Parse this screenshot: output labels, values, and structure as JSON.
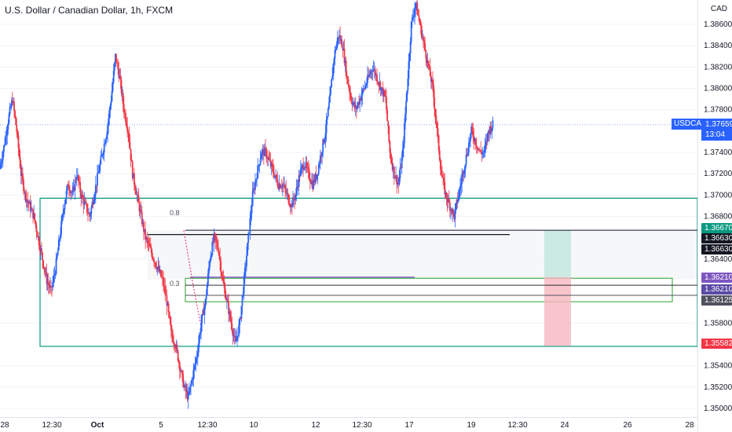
{
  "header": {
    "title": "U.S. Dollar / Canadian Dollar, 1h, FXCM",
    "currency": "CAD"
  },
  "symbol_tag": "USDCAD",
  "last_price": {
    "value": "1.37659",
    "countdown": "13:04"
  },
  "y_axis_ticks": [
    "1.38600",
    "1.38400",
    "1.38200",
    "1.38000",
    "1.37800",
    "1.37400",
    "1.37200",
    "1.37000",
    "1.36800",
    "1.36400",
    "1.35800",
    "1.35400",
    "1.35200",
    "1.35000"
  ],
  "x_axis_ticks": [
    "28",
    "12:30",
    "Oct",
    "5",
    "12:30",
    "10",
    "12",
    "12:30",
    "17",
    "19",
    "12:30",
    "24",
    "26",
    "28"
  ],
  "price_tags": [
    {
      "label": "1.36670",
      "color": "#089981"
    },
    {
      "label": "1.36630",
      "color": "#131722"
    },
    {
      "label": "1.36630",
      "color": "#131722"
    },
    {
      "label": "1.36210",
      "color": "#7e57c2"
    },
    {
      "label": "1.36210",
      "color": "#5b4aa5"
    },
    {
      "label": "1.36125",
      "color": "#50535e"
    },
    {
      "label": "1.35582",
      "color": "#f23645"
    }
  ],
  "fib_labels": [
    "0.8",
    "0.3"
  ],
  "colors": {
    "up": "#2962ff",
    "down": "#f23645",
    "teal": "#089981",
    "green": "#4caf50",
    "purple": "#7e57c2"
  },
  "chart_data": {
    "type": "candlestick",
    "instrument": "USDCAD",
    "interval": "1h",
    "ylim": [
      1.3497,
      1.3875
    ],
    "last_price": 1.37659,
    "levels": [
      1.3667,
      1.3663,
      1.3621,
      1.36125,
      1.35582,
      1.3697
    ],
    "path": [
      1.3725,
      1.3745,
      1.377,
      1.379,
      1.376,
      1.372,
      1.37,
      1.369,
      1.368,
      1.366,
      1.364,
      1.362,
      1.361,
      1.363,
      1.366,
      1.369,
      1.371,
      1.37,
      1.372,
      1.37,
      1.369,
      1.368,
      1.37,
      1.372,
      1.374,
      1.376,
      1.379,
      1.383,
      1.381,
      1.378,
      1.376,
      1.372,
      1.37,
      1.368,
      1.366,
      1.365,
      1.364,
      1.363,
      1.362,
      1.36,
      1.357,
      1.356,
      1.354,
      1.352,
      1.351,
      1.353,
      1.355,
      1.358,
      1.36,
      1.364,
      1.366,
      1.365,
      1.362,
      1.36,
      1.358,
      1.356,
      1.358,
      1.362,
      1.366,
      1.37,
      1.372,
      1.374,
      1.374,
      1.373,
      1.372,
      1.371,
      1.371,
      1.37,
      1.369,
      1.37,
      1.372,
      1.373,
      1.372,
      1.371,
      1.372,
      1.374,
      1.376,
      1.379,
      1.383,
      1.385,
      1.384,
      1.381,
      1.379,
      1.378,
      1.379,
      1.38,
      1.381,
      1.382,
      1.381,
      1.38,
      1.379,
      1.374,
      1.372,
      1.371,
      1.374,
      1.38,
      1.386,
      1.388,
      1.386,
      1.384,
      1.382,
      1.38,
      1.376,
      1.372,
      1.37,
      1.369,
      1.368,
      1.37,
      1.372,
      1.374,
      1.376,
      1.375,
      1.374,
      1.374,
      1.376,
      1.3766
    ]
  }
}
